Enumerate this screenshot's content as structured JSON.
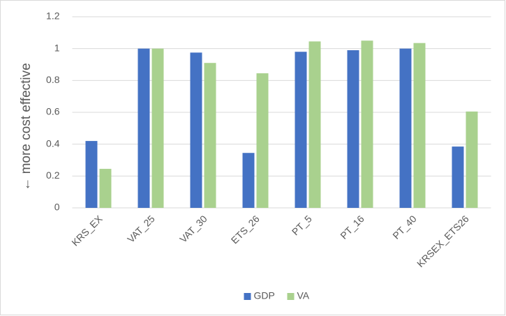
{
  "chart_data": {
    "type": "bar",
    "y_label": "← more cost effective",
    "categories": [
      "KRS_EX",
      "VAT_25",
      "VAT_30",
      "ETS_26",
      "PT_5",
      "PT_16",
      "PT_40",
      "KRSEX_ETS26"
    ],
    "series": [
      {
        "name": "GDP",
        "color": "#4472c4",
        "values": [
          0.42,
          1.0,
          0.975,
          0.345,
          0.98,
          0.99,
          1.0,
          0.385
        ]
      },
      {
        "name": "VA",
        "color": "#a9d18e",
        "values": [
          0.245,
          1.0,
          0.91,
          0.845,
          1.045,
          1.05,
          1.035,
          0.605
        ]
      }
    ],
    "ylim": [
      0,
      1.2
    ],
    "yticks": [
      0,
      0.2,
      0.4,
      0.6,
      0.8,
      1,
      1.2
    ],
    "grid": true,
    "legend": "bottom"
  }
}
